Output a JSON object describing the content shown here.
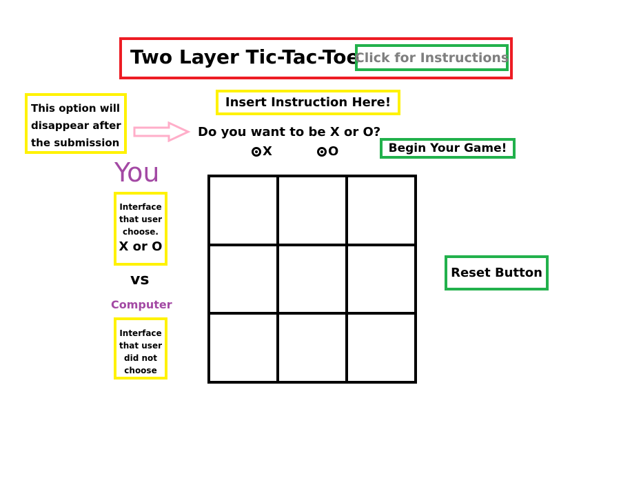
{
  "title": "Two Layer Tic-Tac-Toe",
  "instructions_link": "Click for Instructions",
  "note": "This option will disappear after the submission",
  "instruction_placeholder": "Insert Instruction Here!",
  "question": "Do you want to be X or O?",
  "options": [
    {
      "label": "X"
    },
    {
      "label": "O"
    }
  ],
  "begin_button": "Begin Your Game!",
  "reset_button": "Reset Button",
  "player": {
    "label": "You",
    "interface_text": "Interface that user choose.",
    "choice_text": "X or O"
  },
  "vs": "vs",
  "opponent": {
    "label": "Computer",
    "interface_text": "Interface that user did not choose"
  },
  "board": {
    "cells": [
      "",
      "",
      "",
      "",
      "",
      "",
      "",
      "",
      ""
    ]
  },
  "colors": {
    "title_border": "#ed1c24",
    "button_border": "#22b14c",
    "note_border": "#fff200",
    "arrow": "#ffaec9",
    "player_label": "#a349a4",
    "link_text": "#7f7f7f"
  }
}
